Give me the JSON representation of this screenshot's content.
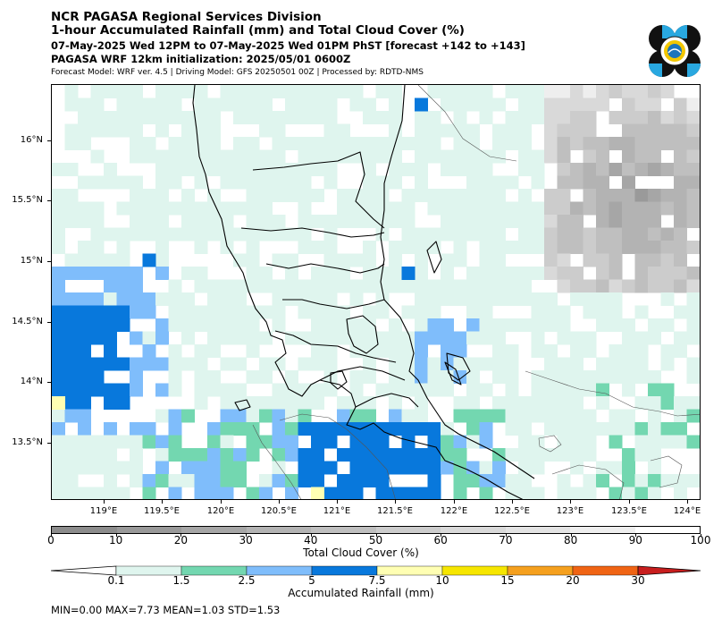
{
  "header": {
    "title1": "NCR PAGASA Regional Services Division",
    "title2": "1-hour Accumulated Rainfall (mm) and Total Cloud Cover (%)",
    "title3": "07-May-2025 Wed 12PM to 07-May-2025 Wed 01PM PhST [forecast +142 to +143]",
    "title4": "PAGASA WRF 12km initialization: 2025/05/01 0600Z",
    "title5": "Forecast Model: WRF ver. 4.5 | Driving Model: GFS 20250501 00Z | Processed by: RDTD-NMS"
  },
  "map": {
    "lat_labels": [
      "16°N",
      "15.5°N",
      "15°N",
      "14.5°N",
      "14°N",
      "13.5°N"
    ],
    "lon_labels": [
      "119°E",
      "119.5°E",
      "120°E",
      "120.5°E",
      "121°E",
      "121.5°E",
      "122°E",
      "122.5°E",
      "123°E",
      "123.5°E",
      "124°E"
    ],
    "extent": {
      "lon_min": 118.55,
      "lon_max": 124.1,
      "lat_min": 13.0,
      "lat_max": 16.45
    }
  },
  "cloud_cover_colorbar": {
    "title": "Total Cloud Cover (%)",
    "ticks": [
      "0",
      "10",
      "20",
      "30",
      "40",
      "50",
      "60",
      "70",
      "80",
      "90",
      "100"
    ],
    "colors": [
      "#8c8c8c",
      "#999999",
      "#a6a6a6",
      "#b3b3b3",
      "#bfbfbf",
      "#cccccc",
      "#d9d9d9",
      "#e3e3e3",
      "#eeeeee",
      "#ffffff"
    ]
  },
  "rainfall_colorbar": {
    "title": "Accumulated Rainfall (mm)",
    "ticks": [
      "0.1",
      "1.5",
      "2.5",
      "5",
      "7.5",
      "10",
      "15",
      "20",
      "30"
    ],
    "colors": [
      "#dff5ee",
      "#73d7b0",
      "#7fbdfb",
      "#0878dc",
      "#ffffb3",
      "#f6e600",
      "#f5a01e",
      "#f06414",
      "#c81e1e"
    ]
  },
  "stats": {
    "text": "MIN=0.00   MAX=7.73   MEAN=1.03   STD=1.53"
  },
  "colors": {
    "cloud_dark": "#8c8c8c",
    "rain_light": "#dff5ee",
    "rain_green": "#73d7b0",
    "rain_blue": "#7fbdfb",
    "rain_dark_blue": "#0878dc",
    "rain_yellow": "#ffffb3"
  }
}
